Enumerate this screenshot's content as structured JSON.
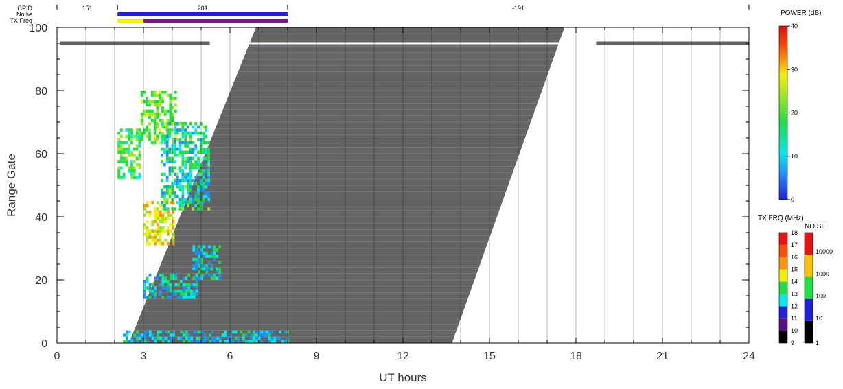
{
  "chart_data": {
    "type": "heatmap",
    "xlabel": "UT hours",
    "ylabel": "Range Gate",
    "xlim": [
      0,
      24
    ],
    "ylim": [
      0,
      100
    ],
    "x_ticks": [
      "0",
      "3",
      "6",
      "9",
      "12",
      "15",
      "18",
      "21",
      "24"
    ],
    "y_ticks": [
      "0",
      "20",
      "40",
      "60",
      "80",
      "100"
    ],
    "grid": true,
    "header_rows": [
      "CPID",
      "Noise",
      "TX Freq"
    ],
    "cpid_segments": [
      {
        "label": "151",
        "start": 0,
        "end": 2.1
      },
      {
        "label": "201",
        "start": 2.1,
        "end": 8
      },
      {
        "label": "-191",
        "start": 8,
        "end": 24
      }
    ],
    "noise_band": {
      "start": 2.1,
      "end": 8,
      "color": "#2020e0"
    },
    "tx_freq_band": [
      {
        "start": 2.1,
        "end": 3.0,
        "color": "#f0f000"
      },
      {
        "start": 3.0,
        "end": 8.0,
        "color": "#7a1a8a"
      }
    ],
    "ground_scatter": {
      "color": "#646464",
      "top_band": [
        {
          "x0": 0.1,
          "x1": 5.3,
          "gate": 95
        },
        {
          "x0": 18.7,
          "x1": 24,
          "gate": 95
        }
      ],
      "main_band": {
        "left": [
          [
            2.5,
            0
          ],
          [
            6.9,
            100
          ]
        ],
        "right": [
          [
            13.7,
            0
          ],
          [
            17.6,
            100
          ]
        ],
        "gap_gate": 95
      }
    },
    "echo_regions": [
      {
        "x0": 2.1,
        "x1": 2.9,
        "y0": 52,
        "y1": 68,
        "value": 14
      },
      {
        "x0": 2.9,
        "x1": 4.1,
        "y0": 63,
        "y1": 80,
        "value": 17
      },
      {
        "x0": 3.0,
        "x1": 4.0,
        "y0": 31,
        "y1": 45,
        "value": 24
      },
      {
        "x0": 3.6,
        "x1": 5.3,
        "y0": 42,
        "y1": 70,
        "value": 10
      },
      {
        "x0": 4.7,
        "x1": 5.6,
        "y0": 20,
        "y1": 31,
        "value": 8
      },
      {
        "x0": 3.0,
        "x1": 4.8,
        "y0": 14,
        "y1": 22,
        "value": 7
      },
      {
        "x0": 2.2,
        "x1": 8.0,
        "y0": 0,
        "y1": 4,
        "value": 6
      }
    ],
    "colorbars": {
      "power": {
        "title": "POWER (dB)",
        "ticks": [
          "0",
          "10",
          "20",
          "30",
          "40"
        ]
      },
      "tx_freq": {
        "title": "TX FRQ (MHz)",
        "ticks": [
          "9",
          "10",
          "11",
          "12",
          "13",
          "14",
          "15",
          "16",
          "17",
          "18"
        ],
        "colors": [
          "#000000",
          "#5a1080",
          "#2020e0",
          "#00e8f0",
          "#20e040",
          "#f0f000",
          "#ff9800",
          "#ff5000",
          "#f01010"
        ]
      },
      "noise": {
        "title": "NOISE",
        "ticks": [
          "1",
          "10",
          "100",
          "1000",
          "10000"
        ],
        "colors": [
          "#000000",
          "#2020e0",
          "#20e040",
          "#ffc000",
          "#f01010"
        ]
      }
    }
  }
}
